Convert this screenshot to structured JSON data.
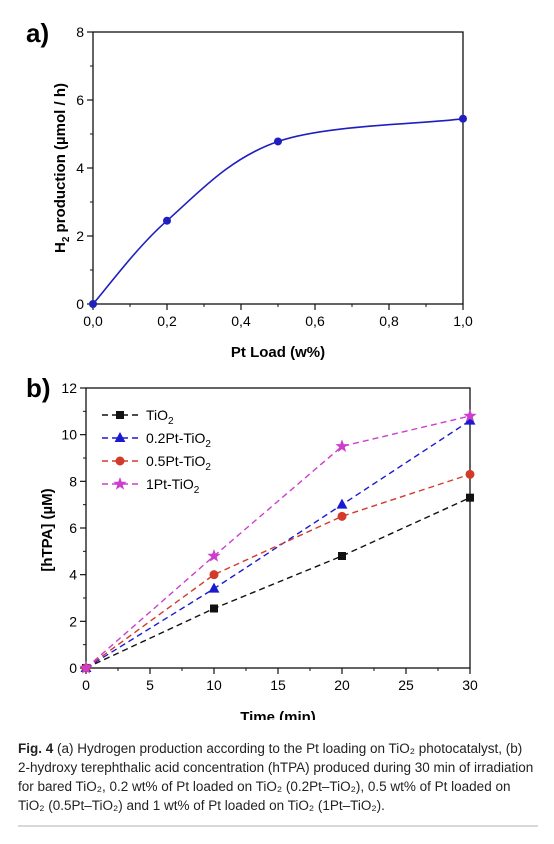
{
  "chart_data": [
    {
      "type": "line",
      "panel_label": "a)",
      "xlabel": "Pt Load (w%)",
      "ylabel_main": "H",
      "ylabel_sub": "2",
      "ylabel_rest": " production (µmol / h)",
      "xlim": [
        0,
        1.0
      ],
      "ylim": [
        0,
        8
      ],
      "xticks": [
        0.0,
        0.2,
        0.4,
        0.6,
        0.8,
        1.0
      ],
      "xtick_labels": [
        "0,0",
        "0,2",
        "0,4",
        "0,6",
        "0,8",
        "1,0"
      ],
      "yticks": [
        0,
        2,
        4,
        6,
        8
      ],
      "ytick_labels": [
        "0",
        "2",
        "4",
        "6",
        "8"
      ],
      "series": [
        {
          "color": "#1f1fbf",
          "smooth": true,
          "x": [
            0.0,
            0.2,
            0.5,
            1.0
          ],
          "y": [
            0.0,
            2.45,
            4.78,
            5.45
          ]
        }
      ]
    },
    {
      "type": "line",
      "panel_label": "b)",
      "xlabel": "Time (min)",
      "ylabel": "[hTPA] (µM)",
      "xlim": [
        0,
        30
      ],
      "ylim": [
        0,
        12
      ],
      "xticks": [
        0,
        5,
        10,
        15,
        20,
        25,
        30
      ],
      "xtick_labels": [
        "0",
        "5",
        "10",
        "15",
        "20",
        "25",
        "30"
      ],
      "yticks": [
        0,
        2,
        4,
        6,
        8,
        10,
        12
      ],
      "ytick_labels": [
        "0",
        "2",
        "4",
        "6",
        "8",
        "10",
        "12"
      ],
      "legend_position": "top-left",
      "series": [
        {
          "name": "TiO",
          "name_sub": "2",
          "color": "#111111",
          "marker": "square",
          "x": [
            0,
            10,
            20,
            30
          ],
          "y": [
            0,
            2.55,
            4.8,
            7.3
          ]
        },
        {
          "name": "0.2Pt-TiO",
          "name_sub": "2",
          "color": "#1a1ad0",
          "marker": "triangle",
          "x": [
            0,
            10,
            20,
            30
          ],
          "y": [
            0,
            3.4,
            7.0,
            10.6
          ]
        },
        {
          "name": "0.5Pt-TiO",
          "name_sub": "2",
          "color": "#d23a2a",
          "marker": "circle",
          "x": [
            0,
            10,
            20,
            30
          ],
          "y": [
            0,
            4.0,
            6.5,
            8.3
          ]
        },
        {
          "name": "1Pt-TiO",
          "name_sub": "2",
          "color": "#cc3ecc",
          "marker": "star",
          "x": [
            0,
            10,
            20,
            30
          ],
          "y": [
            0,
            4.8,
            9.5,
            10.8
          ]
        }
      ]
    }
  ],
  "caption": {
    "label": "Fig. 4",
    "text": "  (a) Hydrogen production according to the Pt loading on TiO₂ photocatalyst, (b) 2-hydroxy terephthalic acid concentration (hTPA) produced during 30 min of irradiation for bared TiO₂, 0.2 wt% of Pt loaded on TiO₂ (0.2Pt–TiO₂), 0.5 wt% of Pt loaded on TiO₂ (0.5Pt–TiO₂) and 1 wt% of Pt loaded on TiO₂ (1Pt–TiO₂)."
  }
}
